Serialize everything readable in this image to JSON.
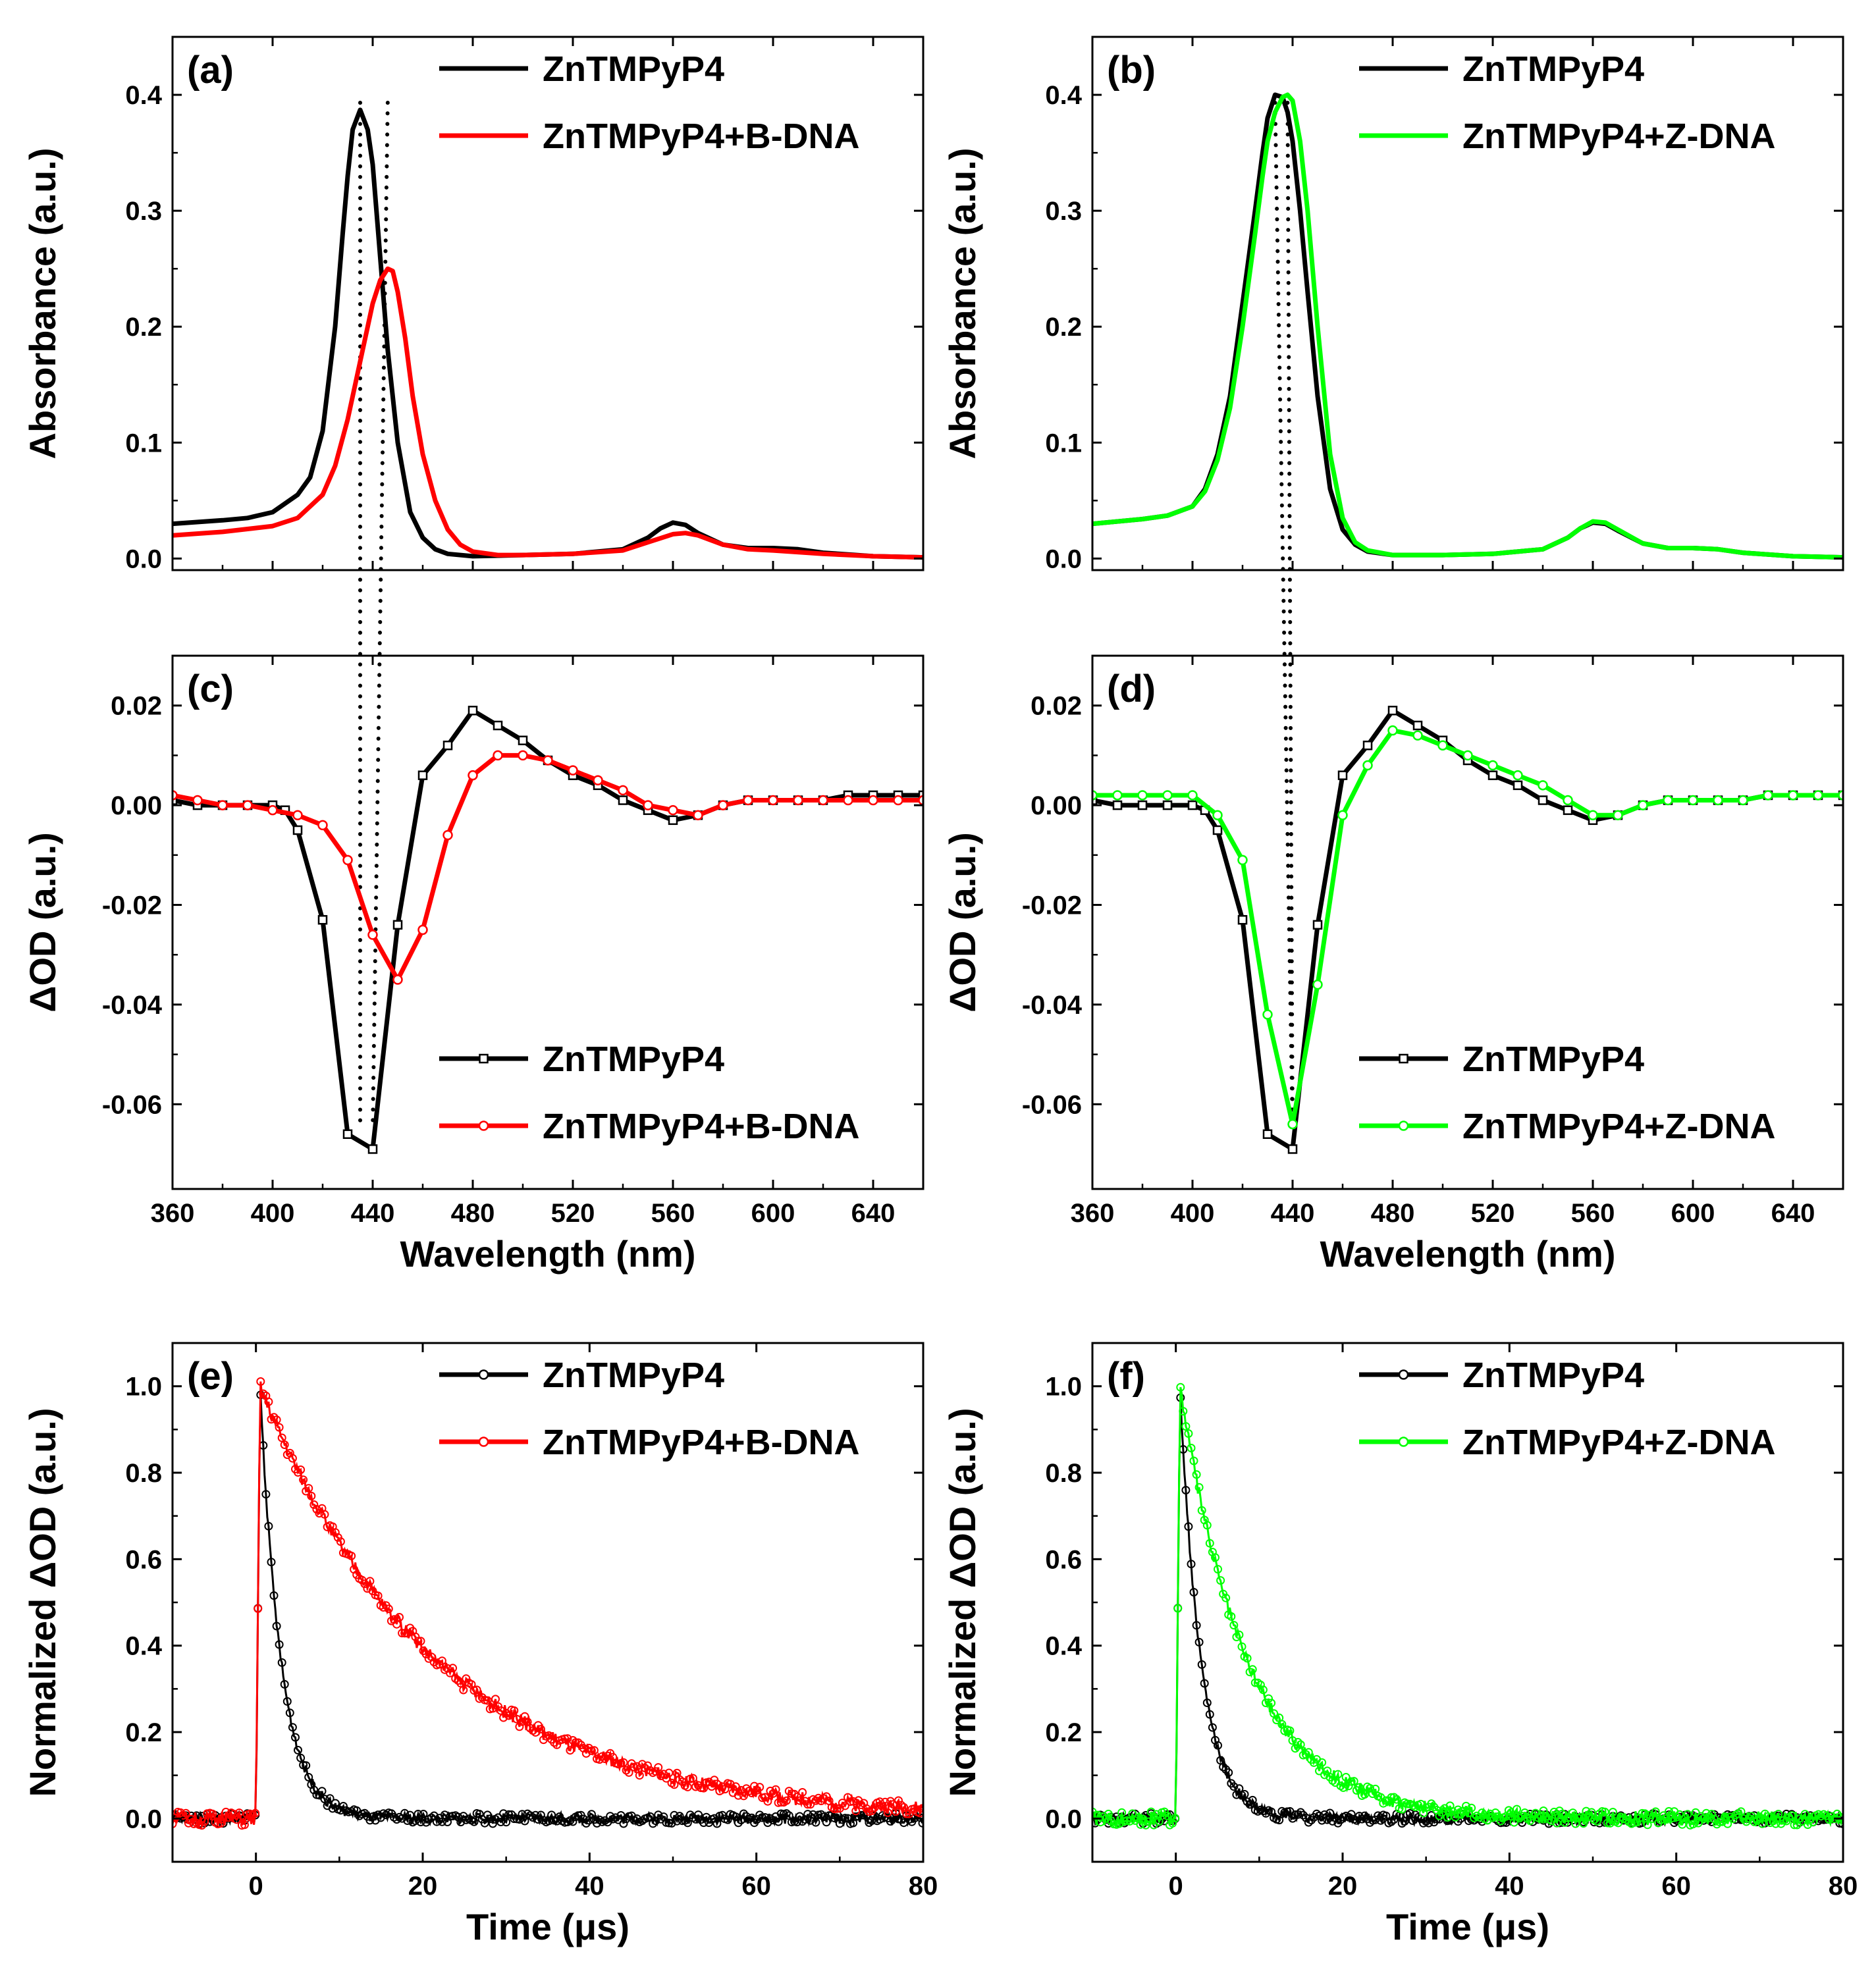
{
  "figure": {
    "colors": {
      "ZnTMPyP4": "#000000",
      "B-DNA": "#ff0000",
      "Z-DNA": "#00ff00",
      "axis": "#000000"
    }
  },
  "chart_data": [
    {
      "id": "a",
      "type": "line",
      "panel_label": "(a)",
      "xlabel": "",
      "ylabel": "Absorbance (a.u.)",
      "xlim": [
        360,
        660
      ],
      "ylim": [
        -0.01,
        0.45
      ],
      "xticks": [
        360,
        400,
        440,
        480,
        520,
        560,
        600,
        640
      ],
      "show_xticklabels": false,
      "yticks": [
        0.0,
        0.1,
        0.2,
        0.3,
        0.4
      ],
      "yticklabels": [
        "0.0",
        "0.1",
        "0.2",
        "0.3",
        "0.4"
      ],
      "legend": {
        "position": "top-right",
        "entries": [
          "ZnTMPyP4",
          "ZnTMPyP4+B-DNA"
        ]
      },
      "series": [
        {
          "name": "ZnTMPyP4",
          "color": "#000000",
          "marker": "none",
          "x": [
            360,
            380,
            390,
            400,
            410,
            415,
            420,
            425,
            428,
            430,
            432,
            435,
            438,
            440,
            443,
            446,
            450,
            455,
            460,
            465,
            470,
            480,
            500,
            520,
            540,
            550,
            555,
            560,
            565,
            570,
            580,
            590,
            600,
            610,
            620,
            640,
            660
          ],
          "y": [
            0.03,
            0.033,
            0.035,
            0.04,
            0.055,
            0.07,
            0.11,
            0.2,
            0.28,
            0.33,
            0.37,
            0.387,
            0.37,
            0.34,
            0.26,
            0.18,
            0.1,
            0.04,
            0.018,
            0.008,
            0.004,
            0.002,
            0.003,
            0.004,
            0.008,
            0.018,
            0.026,
            0.031,
            0.029,
            0.022,
            0.012,
            0.009,
            0.009,
            0.008,
            0.005,
            0.002,
            0.001
          ]
        },
        {
          "name": "ZnTMPyP4+B-DNA",
          "color": "#ff0000",
          "marker": "none",
          "x": [
            360,
            380,
            400,
            410,
            420,
            425,
            430,
            435,
            438,
            440,
            443,
            446,
            448,
            450,
            453,
            456,
            460,
            465,
            470,
            475,
            480,
            490,
            500,
            520,
            540,
            550,
            560,
            565,
            570,
            580,
            590,
            600,
            620,
            640,
            660
          ],
          "y": [
            0.02,
            0.023,
            0.028,
            0.035,
            0.055,
            0.08,
            0.12,
            0.17,
            0.2,
            0.22,
            0.24,
            0.25,
            0.248,
            0.23,
            0.19,
            0.14,
            0.09,
            0.05,
            0.025,
            0.012,
            0.006,
            0.003,
            0.003,
            0.004,
            0.007,
            0.014,
            0.021,
            0.022,
            0.02,
            0.012,
            0.008,
            0.007,
            0.004,
            0.002,
            0.001
          ]
        }
      ]
    },
    {
      "id": "b",
      "type": "line",
      "panel_label": "(b)",
      "xlabel": "",
      "ylabel": "Absorbance (a.u.)",
      "xlim": [
        360,
        660
      ],
      "ylim": [
        -0.01,
        0.45
      ],
      "xticks": [
        360,
        400,
        440,
        480,
        520,
        560,
        600,
        640
      ],
      "show_xticklabels": false,
      "yticks": [
        0.0,
        0.1,
        0.2,
        0.3,
        0.4
      ],
      "yticklabels": [
        "0.0",
        "0.1",
        "0.2",
        "0.3",
        "0.4"
      ],
      "legend": {
        "position": "top-right",
        "entries": [
          "ZnTMPyP4",
          "ZnTMPyP4+Z-DNA"
        ]
      },
      "series": [
        {
          "name": "ZnTMPyP4",
          "color": "#000000",
          "marker": "none",
          "x": [
            360,
            380,
            390,
            400,
            405,
            410,
            415,
            420,
            425,
            428,
            430,
            433,
            436,
            438,
            440,
            443,
            446,
            450,
            455,
            460,
            465,
            470,
            480,
            500,
            520,
            540,
            550,
            555,
            560,
            565,
            570,
            580,
            590,
            600,
            610,
            620,
            640,
            660
          ],
          "y": [
            0.03,
            0.034,
            0.037,
            0.045,
            0.06,
            0.09,
            0.14,
            0.22,
            0.3,
            0.35,
            0.38,
            0.4,
            0.398,
            0.385,
            0.36,
            0.3,
            0.23,
            0.14,
            0.06,
            0.025,
            0.012,
            0.006,
            0.003,
            0.003,
            0.004,
            0.008,
            0.018,
            0.026,
            0.031,
            0.03,
            0.024,
            0.013,
            0.009,
            0.009,
            0.008,
            0.005,
            0.002,
            0.001
          ]
        },
        {
          "name": "ZnTMPyP4+Z-DNA",
          "color": "#00ff00",
          "marker": "none",
          "x": [
            360,
            380,
            390,
            400,
            405,
            410,
            415,
            420,
            425,
            428,
            430,
            433,
            436,
            438,
            440,
            443,
            446,
            450,
            455,
            460,
            465,
            470,
            480,
            500,
            520,
            540,
            550,
            555,
            560,
            565,
            570,
            580,
            590,
            600,
            610,
            620,
            640,
            660
          ],
          "y": [
            0.03,
            0.034,
            0.037,
            0.045,
            0.058,
            0.085,
            0.13,
            0.2,
            0.28,
            0.33,
            0.36,
            0.385,
            0.398,
            0.4,
            0.395,
            0.36,
            0.3,
            0.2,
            0.09,
            0.035,
            0.014,
            0.007,
            0.003,
            0.003,
            0.004,
            0.008,
            0.018,
            0.026,
            0.032,
            0.031,
            0.025,
            0.013,
            0.009,
            0.009,
            0.008,
            0.005,
            0.002,
            0.001
          ]
        }
      ]
    },
    {
      "id": "c",
      "type": "line",
      "panel_label": "(c)",
      "xlabel": "Wavelength (nm)",
      "ylabel": "ΔOD (a.u.)",
      "xlim": [
        360,
        660
      ],
      "ylim": [
        -0.077,
        0.03
      ],
      "xticks": [
        360,
        400,
        440,
        480,
        520,
        560,
        600,
        640
      ],
      "show_xticklabels": true,
      "yticks": [
        -0.06,
        -0.04,
        -0.02,
        0.0,
        0.02
      ],
      "yticklabels": [
        "-0.06",
        "-0.04",
        "-0.02",
        "0.00",
        "0.02"
      ],
      "legend": {
        "position": "bottom-right",
        "entries": [
          "ZnTMPyP4",
          "ZnTMPyP4+B-DNA"
        ]
      },
      "series": [
        {
          "name": "ZnTMPyP4",
          "color": "#000000",
          "marker": "square",
          "x": [
            360,
            370,
            380,
            390,
            400,
            405,
            410,
            420,
            430,
            440,
            450,
            460,
            470,
            480,
            490,
            500,
            510,
            520,
            530,
            540,
            550,
            560,
            570,
            580,
            590,
            600,
            610,
            620,
            630,
            640,
            650,
            660
          ],
          "y": [
            0.001,
            0.0,
            0.0,
            0.0,
            0.0,
            -0.001,
            -0.005,
            -0.023,
            -0.066,
            -0.069,
            -0.024,
            0.006,
            0.012,
            0.019,
            0.016,
            0.013,
            0.009,
            0.006,
            0.004,
            0.001,
            -0.001,
            -0.003,
            -0.002,
            0.0,
            0.001,
            0.001,
            0.001,
            0.001,
            0.002,
            0.002,
            0.002,
            0.002
          ]
        },
        {
          "name": "ZnTMPyP4+B-DNA",
          "color": "#ff0000",
          "marker": "circle",
          "x": [
            360,
            370,
            380,
            390,
            400,
            410,
            420,
            430,
            440,
            450,
            460,
            470,
            480,
            490,
            500,
            510,
            520,
            530,
            540,
            550,
            560,
            570,
            580,
            590,
            600,
            610,
            620,
            630,
            640,
            650,
            660
          ],
          "y": [
            0.002,
            0.001,
            0.0,
            0.0,
            -0.001,
            -0.002,
            -0.004,
            -0.011,
            -0.026,
            -0.035,
            -0.025,
            -0.006,
            0.006,
            0.01,
            0.01,
            0.009,
            0.007,
            0.005,
            0.003,
            0.0,
            -0.001,
            -0.002,
            0.0,
            0.001,
            0.001,
            0.001,
            0.001,
            0.001,
            0.001,
            0.001,
            0.001
          ]
        }
      ]
    },
    {
      "id": "d",
      "type": "line",
      "panel_label": "(d)",
      "xlabel": "Wavelength (nm)",
      "ylabel": "ΔOD (a.u.)",
      "xlim": [
        360,
        660
      ],
      "ylim": [
        -0.077,
        0.03
      ],
      "xticks": [
        360,
        400,
        440,
        480,
        520,
        560,
        600,
        640
      ],
      "show_xticklabels": true,
      "yticks": [
        -0.06,
        -0.04,
        -0.02,
        0.0,
        0.02
      ],
      "yticklabels": [
        "-0.06",
        "-0.04",
        "-0.02",
        "0.00",
        "0.02"
      ],
      "legend": {
        "position": "bottom-right",
        "entries": [
          "ZnTMPyP4",
          "ZnTMPyP4+Z-DNA"
        ]
      },
      "series": [
        {
          "name": "ZnTMPyP4",
          "color": "#000000",
          "marker": "square",
          "x": [
            360,
            370,
            380,
            390,
            400,
            405,
            410,
            420,
            430,
            440,
            450,
            460,
            470,
            480,
            490,
            500,
            510,
            520,
            530,
            540,
            550,
            560,
            570,
            580,
            590,
            600,
            610,
            620,
            630,
            640,
            650,
            660
          ],
          "y": [
            0.001,
            0.0,
            0.0,
            0.0,
            0.0,
            -0.001,
            -0.005,
            -0.023,
            -0.066,
            -0.069,
            -0.024,
            0.006,
            0.012,
            0.019,
            0.016,
            0.013,
            0.009,
            0.006,
            0.004,
            0.001,
            -0.001,
            -0.003,
            -0.002,
            0.0,
            0.001,
            0.001,
            0.001,
            0.001,
            0.002,
            0.002,
            0.002,
            0.002
          ]
        },
        {
          "name": "ZnTMPyP4+Z-DNA",
          "color": "#00ff00",
          "marker": "circle",
          "x": [
            360,
            370,
            380,
            390,
            400,
            410,
            420,
            430,
            440,
            450,
            460,
            470,
            480,
            490,
            500,
            510,
            520,
            530,
            540,
            550,
            560,
            570,
            580,
            590,
            600,
            610,
            620,
            630,
            640,
            650,
            660
          ],
          "y": [
            0.002,
            0.002,
            0.002,
            0.002,
            0.002,
            -0.002,
            -0.011,
            -0.042,
            -0.064,
            -0.036,
            -0.002,
            0.008,
            0.015,
            0.014,
            0.012,
            0.01,
            0.008,
            0.006,
            0.004,
            0.001,
            -0.002,
            -0.002,
            0.0,
            0.001,
            0.001,
            0.001,
            0.001,
            0.002,
            0.002,
            0.002,
            0.002
          ]
        }
      ]
    },
    {
      "id": "e",
      "type": "line",
      "panel_label": "(e)",
      "xlabel": "Time (μs)",
      "ylabel": "Normalized ΔOD (a.u.)",
      "xlim": [
        -10,
        80
      ],
      "ylim": [
        -0.1,
        1.1
      ],
      "xticks": [
        0,
        20,
        40,
        60,
        80
      ],
      "show_xticklabels": true,
      "yticks": [
        0.0,
        0.2,
        0.4,
        0.6,
        0.8,
        1.0
      ],
      "yticklabels": [
        "0.0",
        "0.2",
        "0.4",
        "0.6",
        "0.8",
        "1.0"
      ],
      "legend": {
        "position": "top-right",
        "entries": [
          "ZnTMPyP4",
          "ZnTMPyP4+B-DNA"
        ]
      },
      "series": [
        {
          "name": "ZnTMPyP4",
          "color": "#000000",
          "marker": "circle",
          "decay_lifetime_us": 2.5,
          "noise": 0.012
        },
        {
          "name": "ZnTMPyP4+B-DNA",
          "color": "#ff0000",
          "marker": "circle",
          "decay_lifetime_us": 21,
          "noise": 0.016
        }
      ]
    },
    {
      "id": "f",
      "type": "line",
      "panel_label": "(f)",
      "xlabel": "Time (μs)",
      "ylabel": "Normalized ΔOD (a.u.)",
      "xlim": [
        -10,
        80
      ],
      "ylim": [
        -0.1,
        1.1
      ],
      "xticks": [
        0,
        20,
        40,
        60,
        80
      ],
      "show_xticklabels": true,
      "yticks": [
        0.0,
        0.2,
        0.4,
        0.6,
        0.8,
        1.0
      ],
      "yticklabels": [
        "0.0",
        "0.2",
        "0.4",
        "0.6",
        "0.8",
        "1.0"
      ],
      "legend": {
        "position": "top-right",
        "entries": [
          "ZnTMPyP4",
          "ZnTMPyP4+Z-DNA"
        ]
      },
      "series": [
        {
          "name": "ZnTMPyP4",
          "color": "#000000",
          "marker": "circle",
          "decay_lifetime_us": 2.5,
          "noise": 0.012
        },
        {
          "name": "ZnTMPyP4+Z-DNA",
          "color": "#00ff00",
          "marker": "circle",
          "decay_lifetime_us": 8,
          "noise": 0.016
        }
      ]
    }
  ],
  "guides": [
    {
      "style": "dotted",
      "from_panel": "a",
      "to_panel": "c",
      "x_top": 435,
      "x_bottom": 435
    },
    {
      "style": "dotted",
      "from_panel": "a",
      "to_panel": "c",
      "x_top": 446,
      "x_bottom": 440
    },
    {
      "style": "dotted",
      "from_panel": "b",
      "to_panel": "d",
      "x_top": 433,
      "x_bottom": 440
    },
    {
      "style": "dotted",
      "from_panel": "b",
      "to_panel": "d",
      "x_top": 438,
      "x_bottom": 440
    }
  ]
}
